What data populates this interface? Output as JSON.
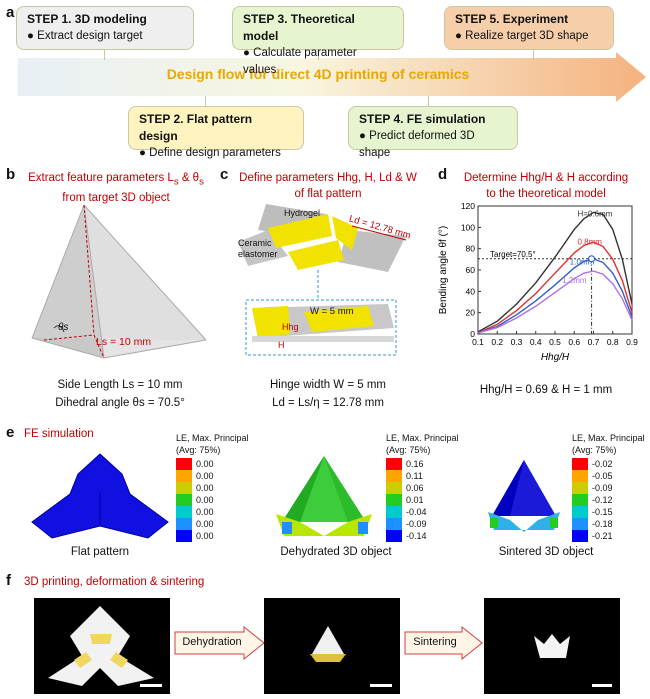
{
  "panel_a": {
    "label": "a",
    "steps": [
      {
        "title": "STEP 1. 3D modeling",
        "item": "Extract design target"
      },
      {
        "title": "STEP 2. Flat pattern design",
        "item": "Define design parameters"
      },
      {
        "title": "STEP 3. Theoretical model",
        "item": "Calculate parameter values"
      },
      {
        "title": "STEP 4. FE simulation",
        "item": "Predict deformed 3D shape"
      },
      {
        "title": "STEP 5. Experiment",
        "item": "Realize target 3D shape"
      }
    ],
    "arrow_text": "Design flow for direct 4D printing of ceramics"
  },
  "panel_b": {
    "label": "b",
    "title_line1": "Extract feature parameters L",
    "title_sub1": "s",
    "title_mid": " & θ",
    "title_sub2": "s",
    "title_line2": "from target 3D object",
    "theta": "θs",
    "length_label": "Ls = 10 mm",
    "caption_line1": "Side Length Ls = 10 mm",
    "caption_line2": "Dihedral angle θs = 70.5°"
  },
  "panel_c": {
    "label": "c",
    "title_line1": "Define parameters Hhg, H, Ld & W",
    "title_line2": "of flat pattern",
    "hydrogel": "Hydrogel",
    "ceramic": "Ceramic",
    "elastomer": "elastomer",
    "ld_label": "Ld = 12.78 mm",
    "w_label": "W = 5 mm",
    "hhg_label": "Hhg",
    "h_label": "H",
    "caption_line1": "Hinge width W = 5 mm",
    "caption_line2": "Ld = Ls/η = 12.78 mm"
  },
  "panel_d": {
    "label": "d",
    "title_line1": "Determine Hhg/H & H according",
    "title_line2": "to the theoretical model",
    "result": "Hhg/H = 0.69 & H = 1 mm",
    "target_label": "Target=70.5°"
  },
  "chart_data": {
    "type": "line",
    "xlabel": "Hhg/H",
    "ylabel": "Bending angle θf (°)",
    "xlim": [
      0.1,
      0.9
    ],
    "ylim": [
      0,
      120
    ],
    "xticks": [
      "0.1",
      "0.2",
      "0.3",
      "0.4",
      "0.5",
      "0.6",
      "0.7",
      "0.8",
      "0.9"
    ],
    "yticks": [
      "0",
      "20",
      "40",
      "60",
      "80",
      "100",
      "120"
    ],
    "target_y": 70.5,
    "marker": {
      "x": 0.69,
      "y": 70.5
    },
    "series": [
      {
        "name": "H=0.6mm",
        "color": "#333333",
        "x": [
          0.1,
          0.2,
          0.3,
          0.4,
          0.5,
          0.6,
          0.65,
          0.7,
          0.75,
          0.8,
          0.85,
          0.9
        ],
        "y": [
          2,
          12,
          28,
          48,
          72,
          98,
          108,
          114,
          112,
          98,
          70,
          28
        ]
      },
      {
        "name": "0.8mm",
        "color": "#e03030",
        "x": [
          0.1,
          0.2,
          0.3,
          0.4,
          0.5,
          0.6,
          0.65,
          0.7,
          0.75,
          0.8,
          0.85,
          0.9
        ],
        "y": [
          1,
          9,
          22,
          38,
          57,
          76,
          83,
          86,
          82,
          70,
          50,
          20
        ]
      },
      {
        "name": "1.0mm",
        "color": "#3060d0",
        "x": [
          0.1,
          0.2,
          0.3,
          0.4,
          0.5,
          0.6,
          0.65,
          0.7,
          0.75,
          0.8,
          0.85,
          0.9
        ],
        "y": [
          1,
          7,
          18,
          31,
          46,
          62,
          68,
          70.5,
          67,
          57,
          40,
          16
        ]
      },
      {
        "name": "1.2mm",
        "color": "#b070e0",
        "x": [
          0.1,
          0.2,
          0.3,
          0.4,
          0.5,
          0.6,
          0.65,
          0.7,
          0.75,
          0.8,
          0.85,
          0.9
        ],
        "y": [
          1,
          6,
          15,
          26,
          39,
          52,
          57,
          59,
          56,
          47,
          33,
          13
        ]
      }
    ]
  },
  "panel_e": {
    "label": "e",
    "title": "FE simulation",
    "legend_title1": "LE, Max. Principal",
    "legend_title2": "(Avg: 75%)",
    "colors": [
      "#ff0000",
      "#ffa500",
      "#cccc00",
      "#22cc22",
      "#00cccc",
      "#1e90ff",
      "#0000ff"
    ],
    "scales": [
      [
        "0.00",
        "0.00",
        "0.00",
        "0.00",
        "0.00",
        "0.00",
        "0.00"
      ],
      [
        "0.16",
        "0.11",
        "0.06",
        "0.01",
        "-0.04",
        "-0.09",
        "-0.14"
      ],
      [
        "-0.02",
        "-0.05",
        "-0.09",
        "-0.12",
        "-0.15",
        "-0.18",
        "-0.21"
      ]
    ],
    "captions": [
      "Flat pattern",
      "Dehydrated 3D object",
      "Sintered 3D object"
    ]
  },
  "panel_f": {
    "label": "f",
    "title": "3D printing, deformation & sintering",
    "arrow1": "Dehydration",
    "arrow2": "Sintering"
  }
}
